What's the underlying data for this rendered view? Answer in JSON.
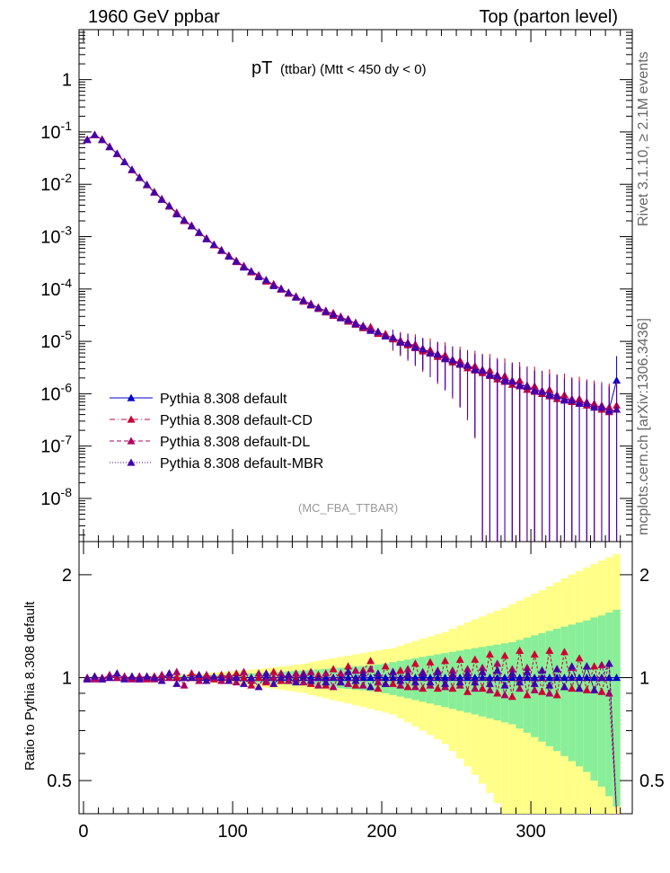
{
  "header": {
    "left": "1960 GeV ppbar",
    "right": "Top (parton level)"
  },
  "side_labels": {
    "upper": "Rivet 3.1.10, ≥ 2.1M events",
    "lower": "mcplots.cern.ch [arXiv:1306.3436]"
  },
  "colors": {
    "default": "#0000cc",
    "cd": "#cc0033",
    "dl": "#aa0066",
    "mbr": "#4400aa",
    "band_yellow": "#ffff88",
    "band_green": "#88ee99"
  },
  "chart_data": [
    {
      "type": "scatter",
      "title_main": "pT",
      "title_sub": "(ttbar) (Mtt < 450 dy < 0)",
      "annotation": "(MC_FBA_TTBAR)",
      "yscale": "log",
      "xlim": [
        -3,
        368
      ],
      "ylim": [
        1.5e-09,
        9
      ],
      "ytick_labels": [
        "10^-8",
        "10^-7",
        "10^-6",
        "10^-5",
        "10^-4",
        "10^-3",
        "10^-2",
        "10^-1",
        "1"
      ],
      "legend_position": "lower-left",
      "x": [
        2.5,
        7.5,
        12.5,
        17.5,
        22.5,
        27.5,
        32.5,
        37.5,
        42.5,
        47.5,
        52.5,
        57.5,
        62.5,
        67.5,
        72.5,
        77.5,
        82.5,
        87.5,
        92.5,
        97.5,
        102.5,
        107.5,
        112.5,
        117.5,
        122.5,
        127.5,
        132.5,
        137.5,
        142.5,
        147.5,
        152.5,
        157.5,
        162.5,
        167.5,
        172.5,
        177.5,
        182.5,
        187.5,
        192.5,
        197.5,
        202.5,
        207.5,
        212.5,
        217.5,
        222.5,
        227.5,
        232.5,
        237.5,
        242.5,
        247.5,
        252.5,
        257.5,
        262.5,
        267.5,
        272.5,
        277.5,
        282.5,
        287.5,
        292.5,
        297.5,
        302.5,
        307.5,
        312.5,
        317.5,
        322.5,
        327.5,
        332.5,
        337.5,
        342.5,
        347.5,
        352.5,
        357.5
      ],
      "series": [
        {
          "name": "Pythia 8.308 default",
          "color_key": "default",
          "line": "solid",
          "values": [
            0.072,
            0.088,
            0.072,
            0.052,
            0.038,
            0.027,
            0.019,
            0.0135,
            0.0098,
            0.0071,
            0.0052,
            0.0038,
            0.0028,
            0.0021,
            0.0016,
            0.0012,
            0.00092,
            0.0007,
            0.00055,
            0.00043,
            0.00034,
            0.00027,
            0.00022,
            0.00018,
            0.000145,
            0.00012,
            0.0001,
            8.4e-05,
            7.1e-05,
            6e-05,
            5.1e-05,
            4.4e-05,
            3.8e-05,
            3.3e-05,
            2.9e-05,
            2.5e-05,
            2.2e-05,
            1.9e-05,
            1.7e-05,
            1.5e-05,
            1.3e-05,
            1.15e-05,
            1e-05,
            9e-06,
            8e-06,
            7e-06,
            6.2e-06,
            5.5e-06,
            4.9e-06,
            4.3e-06,
            3.8e-06,
            3.4e-06,
            3e-06,
            2.7e-06,
            2.4e-06,
            2.1e-06,
            1.9e-06,
            1.7e-06,
            1.5e-06,
            1.35e-06,
            1.2e-06,
            1.1e-06,
            1e-06,
            9e-07,
            8e-07,
            7.5e-07,
            7e-07,
            6.5e-07,
            6e-07,
            5.5e-07,
            5e-07,
            1.8e-06
          ]
        },
        {
          "name": "Pythia 8.308 default-CD",
          "color_key": "cd",
          "line": "dashdot",
          "values": [
            0.071,
            0.088,
            0.072,
            0.052,
            0.038,
            0.027,
            0.019,
            0.0133,
            0.0097,
            0.0072,
            0.0052,
            0.0039,
            0.0028,
            0.0021,
            0.00165,
            0.00121,
            0.00093,
            0.00069,
            0.00056,
            0.00043,
            0.00035,
            0.00027,
            0.00021,
            0.00018,
            0.00014,
            0.000125,
            9.8e-05,
            8.6e-05,
            7e-05,
            6.2e-05,
            4.9e-05,
            4.5e-05,
            3.6e-05,
            3.5e-05,
            2.8e-05,
            2.7e-05,
            2.1e-05,
            2e-05,
            1.9e-05,
            1.4e-05,
            1.4e-05,
            1.1e-05,
            1.05e-05,
            8.5e-06,
            8.8e-06,
            6.5e-06,
            6.9e-06,
            5.1e-06,
            5.5e-06,
            4e-06,
            4.3e-06,
            3.1e-06,
            3.4e-06,
            2.5e-06,
            2.8e-06,
            1.9e-06,
            2.2e-06,
            1.5e-06,
            1.8e-06,
            1.2e-06,
            1.4e-06,
            1e-06,
            1.2e-06,
            8e-07,
            9.5e-07,
            7e-07,
            8e-07,
            6e-07,
            6.5e-07,
            5e-07,
            5.5e-07,
            6e-07
          ]
        },
        {
          "name": "Pythia 8.308 default-DL",
          "color_key": "dl",
          "line": "dashed",
          "values": [
            0.072,
            0.087,
            0.071,
            0.053,
            0.038,
            0.0272,
            0.0188,
            0.0136,
            0.0098,
            0.007,
            0.0053,
            0.0038,
            0.0029,
            0.002,
            0.0016,
            0.00118,
            0.00094,
            0.0007,
            0.00054,
            0.00044,
            0.00033,
            0.00028,
            0.000215,
            0.000185,
            0.000142,
            0.00012,
            0.000103,
            8.2e-05,
            7.3e-05,
            5.8e-05,
            5.3e-05,
            4.2e-05,
            3.9e-05,
            3.1e-05,
            3e-05,
            2.4e-05,
            2.3e-05,
            1.8e-05,
            1.8e-05,
            1.45e-05,
            1.25e-05,
            1.2e-05,
            9.5e-06,
            9.5e-06,
            7.5e-06,
            7.3e-06,
            5.9e-06,
            5.8e-06,
            4.6e-06,
            4.5e-06,
            3.6e-06,
            3.6e-06,
            2.8e-06,
            2.9e-06,
            2.2e-06,
            2.3e-06,
            1.7e-06,
            1.8e-06,
            1.4e-06,
            1.45e-06,
            1.1e-06,
            1.15e-06,
            9e-07,
            9.5e-07,
            7.5e-07,
            8e-07,
            6.5e-07,
            7e-07,
            5.5e-07,
            6e-07,
            4.5e-07,
            5e-07
          ]
        },
        {
          "name": "Pythia 8.308 default-MBR",
          "color_key": "mbr",
          "line": "dotted",
          "values": [
            0.071,
            0.089,
            0.071,
            0.052,
            0.039,
            0.0268,
            0.0192,
            0.0134,
            0.0099,
            0.0071,
            0.0051,
            0.0039,
            0.0027,
            0.0021,
            0.0016,
            0.00122,
            0.0009,
            0.00071,
            0.00055,
            0.00042,
            0.00034,
            0.00026,
            0.00022,
            0.00017,
            0.00015,
            0.000115,
            0.0001,
            8.6e-05,
            6.9e-05,
            6.1e-05,
            5e-05,
            4.4e-05,
            3.7e-05,
            3.3e-05,
            2.8e-05,
            2.6e-05,
            2.15e-05,
            1.95e-05,
            1.6e-05,
            1.55e-05,
            1.25e-05,
            1.2e-05,
            9.8e-06,
            9.2e-06,
            7.8e-06,
            7.2e-06,
            6e-06,
            5.7e-06,
            4.7e-06,
            4.4e-06,
            3.7e-06,
            3.5e-06,
            2.9e-06,
            2.8e-06,
            2.3e-06,
            2.2e-06,
            1.8e-06,
            1.75e-06,
            1.45e-06,
            1.4e-06,
            1.15e-06,
            1.1e-06,
            9.5e-07,
            9e-07,
            7.5e-07,
            7.5e-07,
            6.5e-07,
            6.5e-07,
            5.5e-07,
            5.5e-07,
            4.8e-07,
            5e-07
          ]
        }
      ]
    },
    {
      "type": "scatter",
      "ylabel": "Ratio to Pythia 8.308 default",
      "yscale": "log",
      "xlim": [
        -3,
        368
      ],
      "ylim": [
        0.4,
        2.5
      ],
      "xticks": [
        0,
        100,
        200,
        300
      ],
      "yticks": [
        0.5,
        1,
        2
      ],
      "ratio_series": [
        {
          "name": "Pythia 8.308 default-CD",
          "color_key": "cd",
          "values": [
            0.99,
            1.0,
            1.0,
            1.0,
            1.0,
            1.0,
            1.0,
            0.99,
            0.99,
            1.01,
            1.0,
            1.03,
            1.0,
            1.0,
            1.03,
            1.01,
            1.01,
            0.99,
            1.02,
            1.0,
            1.03,
            1.0,
            0.95,
            1.0,
            0.97,
            1.04,
            0.98,
            1.02,
            0.99,
            1.03,
            0.96,
            1.02,
            0.95,
            1.06,
            0.97,
            1.08,
            0.95,
            1.05,
            1.12,
            0.93,
            1.08,
            0.96,
            1.05,
            0.94,
            1.1,
            0.93,
            1.11,
            0.93,
            1.12,
            0.93,
            1.13,
            0.91,
            1.13,
            0.93,
            1.17,
            0.9,
            1.16,
            0.88,
            1.2,
            0.89,
            1.17,
            0.91,
            1.2,
            0.89,
            1.19,
            0.93,
            1.14,
            0.92,
            1.08,
            0.91,
            1.1,
            0.33
          ]
        },
        {
          "name": "Pythia 8.308 default-DL",
          "color_key": "dl",
          "values": [
            1.0,
            0.99,
            0.99,
            1.02,
            1.0,
            1.01,
            0.99,
            1.01,
            1.0,
            0.99,
            1.02,
            1.0,
            1.04,
            0.95,
            1.0,
            0.98,
            1.02,
            1.0,
            0.98,
            1.02,
            0.97,
            1.04,
            0.98,
            1.03,
            0.98,
            1.0,
            1.03,
            0.98,
            1.03,
            0.97,
            1.04,
            0.95,
            1.03,
            0.94,
            1.03,
            0.96,
            1.05,
            0.95,
            1.06,
            0.97,
            0.96,
            1.04,
            0.95,
            1.06,
            0.94,
            1.04,
            0.95,
            1.05,
            0.94,
            1.05,
            0.95,
            1.06,
            0.93,
            1.07,
            0.92,
            1.1,
            0.89,
            1.06,
            0.93,
            1.07,
            0.92,
            1.05,
            0.9,
            1.06,
            0.94,
            1.07,
            0.93,
            1.08,
            0.92,
            1.09,
            0.9,
            0.28
          ]
        },
        {
          "name": "Pythia 8.308 default-MBR",
          "color_key": "mbr",
          "values": [
            0.99,
            1.01,
            0.99,
            1.0,
            1.03,
            0.99,
            1.01,
            0.99,
            1.01,
            1.0,
            0.98,
            1.03,
            0.96,
            1.0,
            1.0,
            1.02,
            0.98,
            1.01,
            1.0,
            0.98,
            1.0,
            0.96,
            1.0,
            0.94,
            1.03,
            0.96,
            1.0,
            1.02,
            0.97,
            1.02,
            0.98,
            1.0,
            0.97,
            1.0,
            0.97,
            1.04,
            0.98,
            1.03,
            0.94,
            1.03,
            0.96,
            1.04,
            0.98,
            1.02,
            0.97,
            1.03,
            0.97,
            1.04,
            0.96,
            1.02,
            0.97,
            1.03,
            0.97,
            1.04,
            0.96,
            1.05,
            0.95,
            1.03,
            0.97,
            1.04,
            0.96,
            1.05,
            0.95,
            1.06,
            0.94,
            1.08,
            0.93,
            1.08,
            0.92,
            1.0,
            1.1,
            0.27
          ]
        }
      ],
      "band_inner_halfwidth": [
        0.003,
        0.003,
        0.003,
        0.003,
        0.004,
        0.005,
        0.005,
        0.006,
        0.007,
        0.008,
        0.009,
        0.01,
        0.011,
        0.013,
        0.014,
        0.016,
        0.017,
        0.019,
        0.021,
        0.023,
        0.025,
        0.027,
        0.03,
        0.032,
        0.035,
        0.038,
        0.041,
        0.044,
        0.047,
        0.05,
        0.054,
        0.057,
        0.061,
        0.065,
        0.069,
        0.073,
        0.078,
        0.082,
        0.087,
        0.092,
        0.1,
        0.11,
        0.12,
        0.13,
        0.14,
        0.15,
        0.16,
        0.17,
        0.18,
        0.19,
        0.2,
        0.21,
        0.22,
        0.23,
        0.24,
        0.25,
        0.26,
        0.27,
        0.29,
        0.31,
        0.33,
        0.35,
        0.37,
        0.39,
        0.41,
        0.43,
        0.45,
        0.47,
        0.5,
        0.52,
        0.55,
        0.58
      ],
      "band_outer_halfwidth": [
        0.005,
        0.005,
        0.006,
        0.006,
        0.007,
        0.008,
        0.009,
        0.011,
        0.012,
        0.014,
        0.016,
        0.018,
        0.02,
        0.023,
        0.026,
        0.029,
        0.032,
        0.035,
        0.039,
        0.043,
        0.047,
        0.051,
        0.056,
        0.061,
        0.066,
        0.072,
        0.078,
        0.084,
        0.091,
        0.098,
        0.11,
        0.12,
        0.13,
        0.14,
        0.15,
        0.16,
        0.17,
        0.18,
        0.19,
        0.2,
        0.21,
        0.22,
        0.24,
        0.26,
        0.28,
        0.3,
        0.32,
        0.34,
        0.36,
        0.39,
        0.42,
        0.45,
        0.48,
        0.51,
        0.54,
        0.57,
        0.6,
        0.64,
        0.68,
        0.72,
        0.76,
        0.8,
        0.85,
        0.9,
        0.95,
        1.0,
        1.05,
        1.1,
        1.15,
        1.2,
        1.25,
        1.3
      ]
    }
  ]
}
